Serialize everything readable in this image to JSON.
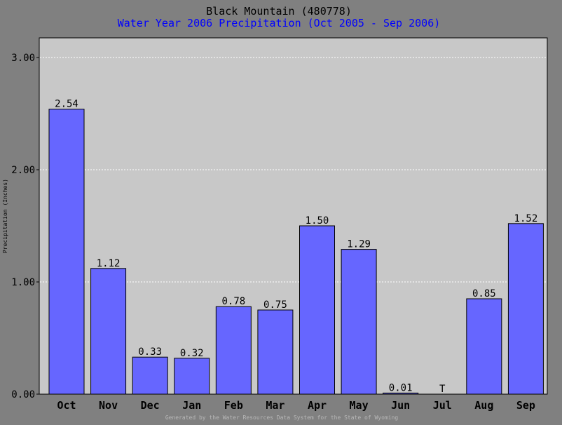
{
  "chart_data": {
    "type": "bar",
    "title": "Black Mountain (480778)",
    "subtitle": "Water Year 2006 Precipitation (Oct 2005 - Sep 2006)",
    "xlabel": "",
    "ylabel": "Precipitation (Inches)",
    "ylim": [
      0,
      3.2
    ],
    "yticks": [
      "0.00",
      "1.00",
      "2.00",
      "3.00"
    ],
    "categories": [
      "Oct",
      "Nov",
      "Dec",
      "Jan",
      "Feb",
      "Mar",
      "Apr",
      "May",
      "Jun",
      "Jul",
      "Aug",
      "Sep"
    ],
    "values": [
      2.54,
      1.12,
      0.33,
      0.32,
      0.78,
      0.75,
      1.5,
      1.29,
      0.01,
      0,
      0.85,
      1.52
    ],
    "data_labels": [
      "2.54",
      "1.12",
      "0.33",
      "0.32",
      "0.78",
      "0.75",
      "1.50",
      "1.29",
      "0.01",
      "T",
      "0.85",
      "1.52"
    ],
    "grid": true,
    "footer": "Generated by the Water Resources Data System for the State of Wyoming",
    "colors": {
      "background": "#808080",
      "plot_area": "#c8c8c8",
      "bar_fill": "#6666ff",
      "bar_stroke": "#000000",
      "subtitle": "#0000ff",
      "gridline": "#ffffff",
      "footer": "#b8b8b8"
    }
  }
}
